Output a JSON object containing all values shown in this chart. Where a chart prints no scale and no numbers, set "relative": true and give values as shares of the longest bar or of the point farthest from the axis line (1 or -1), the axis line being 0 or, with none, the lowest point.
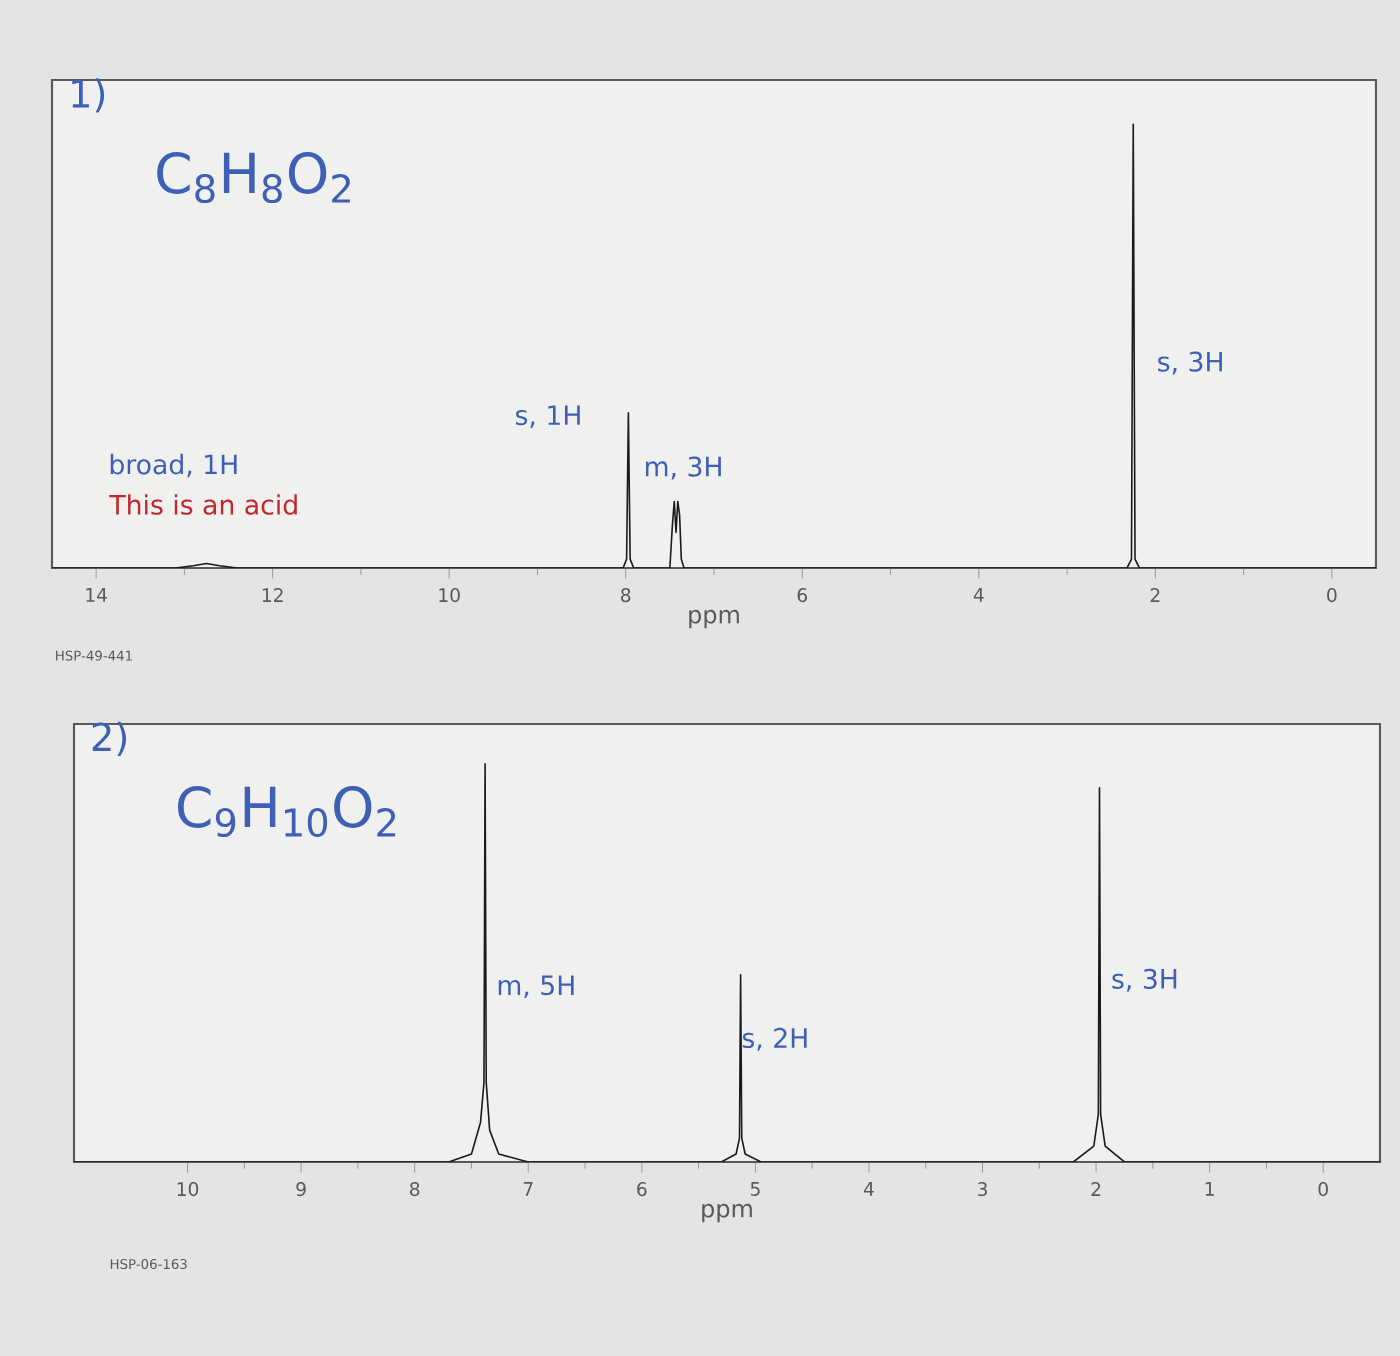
{
  "chart_data": [
    {
      "type": "line",
      "title": "1)",
      "subtitle": "C$_{8}$H$_{8}$O$_{2}$",
      "xlabel": "ppm",
      "relative": true,
      "xlim": [
        14.5,
        -0.5
      ],
      "xticks": [
        14,
        12,
        10,
        8,
        6,
        4,
        2,
        0
      ],
      "series": [
        {
          "color": "#1a1a1a",
          "x": [
            14.5,
            13.1,
            12.9,
            12.75,
            12.6,
            12.4,
            8.03,
            7.99,
            7.97,
            7.95,
            7.91,
            7.5,
            7.47,
            7.45,
            7.43,
            7.41,
            7.39,
            7.37,
            7.34,
            2.32,
            2.27,
            2.25,
            2.23,
            2.18,
            -0.5
          ],
          "values": [
            0,
            0,
            0.005,
            0.01,
            0.005,
            0,
            0,
            0.02,
            0.35,
            0.02,
            0,
            0,
            0.1,
            0.15,
            0.08,
            0.15,
            0.12,
            0.02,
            0,
            0,
            0.02,
            1,
            0.02,
            0,
            0
          ]
        }
      ],
      "annotations": [
        "broad, 1H",
        "This is an acid",
        "s, 1H",
        "m, 3H",
        "s, 3H",
        "HSP-49-441"
      ]
    },
    {
      "type": "line",
      "title": "2)",
      "subtitle": "C$_{9}$H$_{10}$O$_{2}$",
      "xlabel": "ppm",
      "relative": true,
      "xlim": [
        11,
        -0.5
      ],
      "xticks": [
        10,
        9,
        8,
        7,
        6,
        5,
        4,
        3,
        2,
        1,
        0
      ],
      "series": [
        {
          "color": "#1a1a1a",
          "x": [
            11,
            7.7,
            7.5,
            7.42,
            7.39,
            7.38,
            7.37,
            7.34,
            7.26,
            7.0,
            5.3,
            5.17,
            5.14,
            5.13,
            5.12,
            5.09,
            4.95,
            2.2,
            2.02,
            1.98,
            1.97,
            1.96,
            1.92,
            1.75,
            -0.5
          ],
          "values": [
            0,
            0,
            0.02,
            0.1,
            0.2,
            1,
            0.2,
            0.08,
            0.02,
            0,
            0,
            0.02,
            0.06,
            0.47,
            0.06,
            0.02,
            0,
            0,
            0.04,
            0.12,
            0.94,
            0.12,
            0.04,
            0,
            0
          ]
        }
      ],
      "annotations": [
        "m, 5H",
        "s, 2H",
        "s, 3H",
        "HSP-06-163"
      ]
    }
  ]
}
